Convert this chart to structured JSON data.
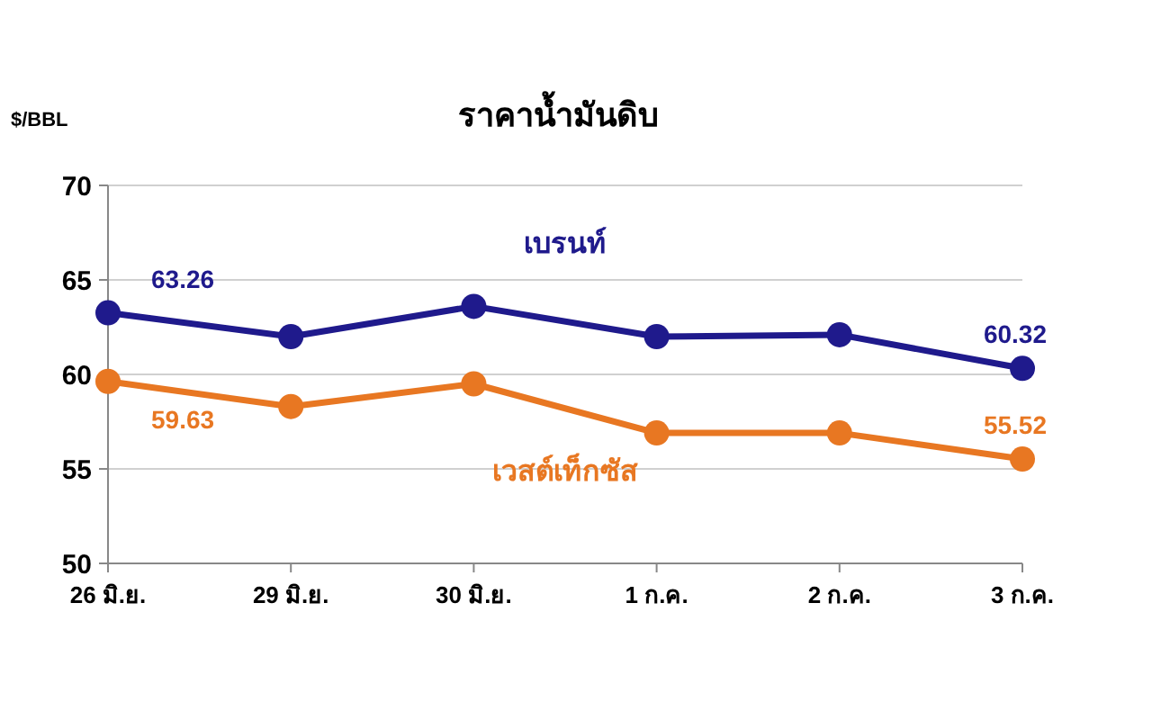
{
  "chart_data": {
    "type": "line",
    "title": "ราคาน้ำมันดิบ",
    "ylabel": "$/BBL",
    "categories": [
      "26 มิ.ย.",
      "29 มิ.ย.",
      "30 มิ.ย.",
      "1 ก.ค.",
      "2 ก.ค.",
      "3 ก.ค."
    ],
    "series": [
      {
        "name": "เบรนท์",
        "color": "#1f1a8c",
        "values": [
          63.26,
          62.0,
          63.6,
          62.0,
          62.1,
          60.32
        ],
        "value_labels": [
          "63.26",
          null,
          null,
          null,
          null,
          "60.32"
        ]
      },
      {
        "name": "เวสต์เท็กซัส",
        "color": "#e87722",
        "values": [
          59.63,
          58.3,
          59.5,
          56.9,
          56.9,
          55.52
        ],
        "value_labels": [
          "59.63",
          null,
          null,
          null,
          null,
          "55.52"
        ]
      }
    ],
    "ylim": [
      50,
      70
    ],
    "yticks": [
      50,
      55,
      60,
      65,
      70
    ],
    "grid": "y",
    "legend": false,
    "marker": "circle",
    "line_style": "solid"
  }
}
